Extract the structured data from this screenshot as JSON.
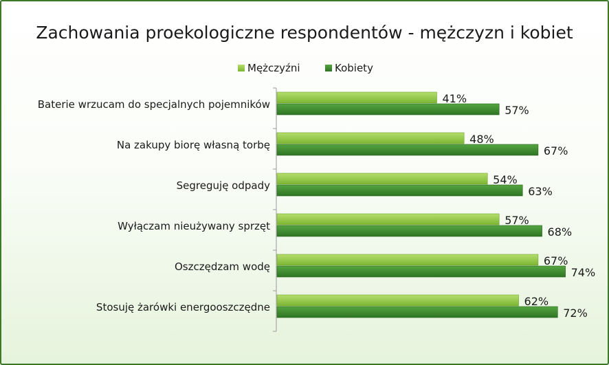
{
  "chart_data": {
    "type": "bar",
    "orientation": "horizontal",
    "title": "Zachowania proekologiczne respondentów - mężczyzn i kobiet",
    "categories": [
      "Baterie wrzucam do specjalnych pojemników",
      "Na zakupy biorę własną torbę",
      "Segreguję odpady",
      "Wyłączam nieużywany sprzęt",
      "Oszczędzam wodę",
      "Stosuję żarówki energooszczędne"
    ],
    "series": [
      {
        "name": "Mężczyźni",
        "color": "#8dc63f",
        "values": [
          41,
          48,
          54,
          57,
          67,
          62
        ],
        "labels": [
          "41%",
          "48%",
          "54%",
          "57%",
          "67%",
          "62%"
        ]
      },
      {
        "name": "Kobiety",
        "color": "#3c8a2e",
        "values": [
          57,
          67,
          63,
          68,
          74,
          72
        ],
        "labels": [
          "57%",
          "67%",
          "63%",
          "68%",
          "74%",
          "72%"
        ]
      }
    ],
    "xlim": [
      0,
      100
    ],
    "legend": "top-center",
    "grid": false
  }
}
